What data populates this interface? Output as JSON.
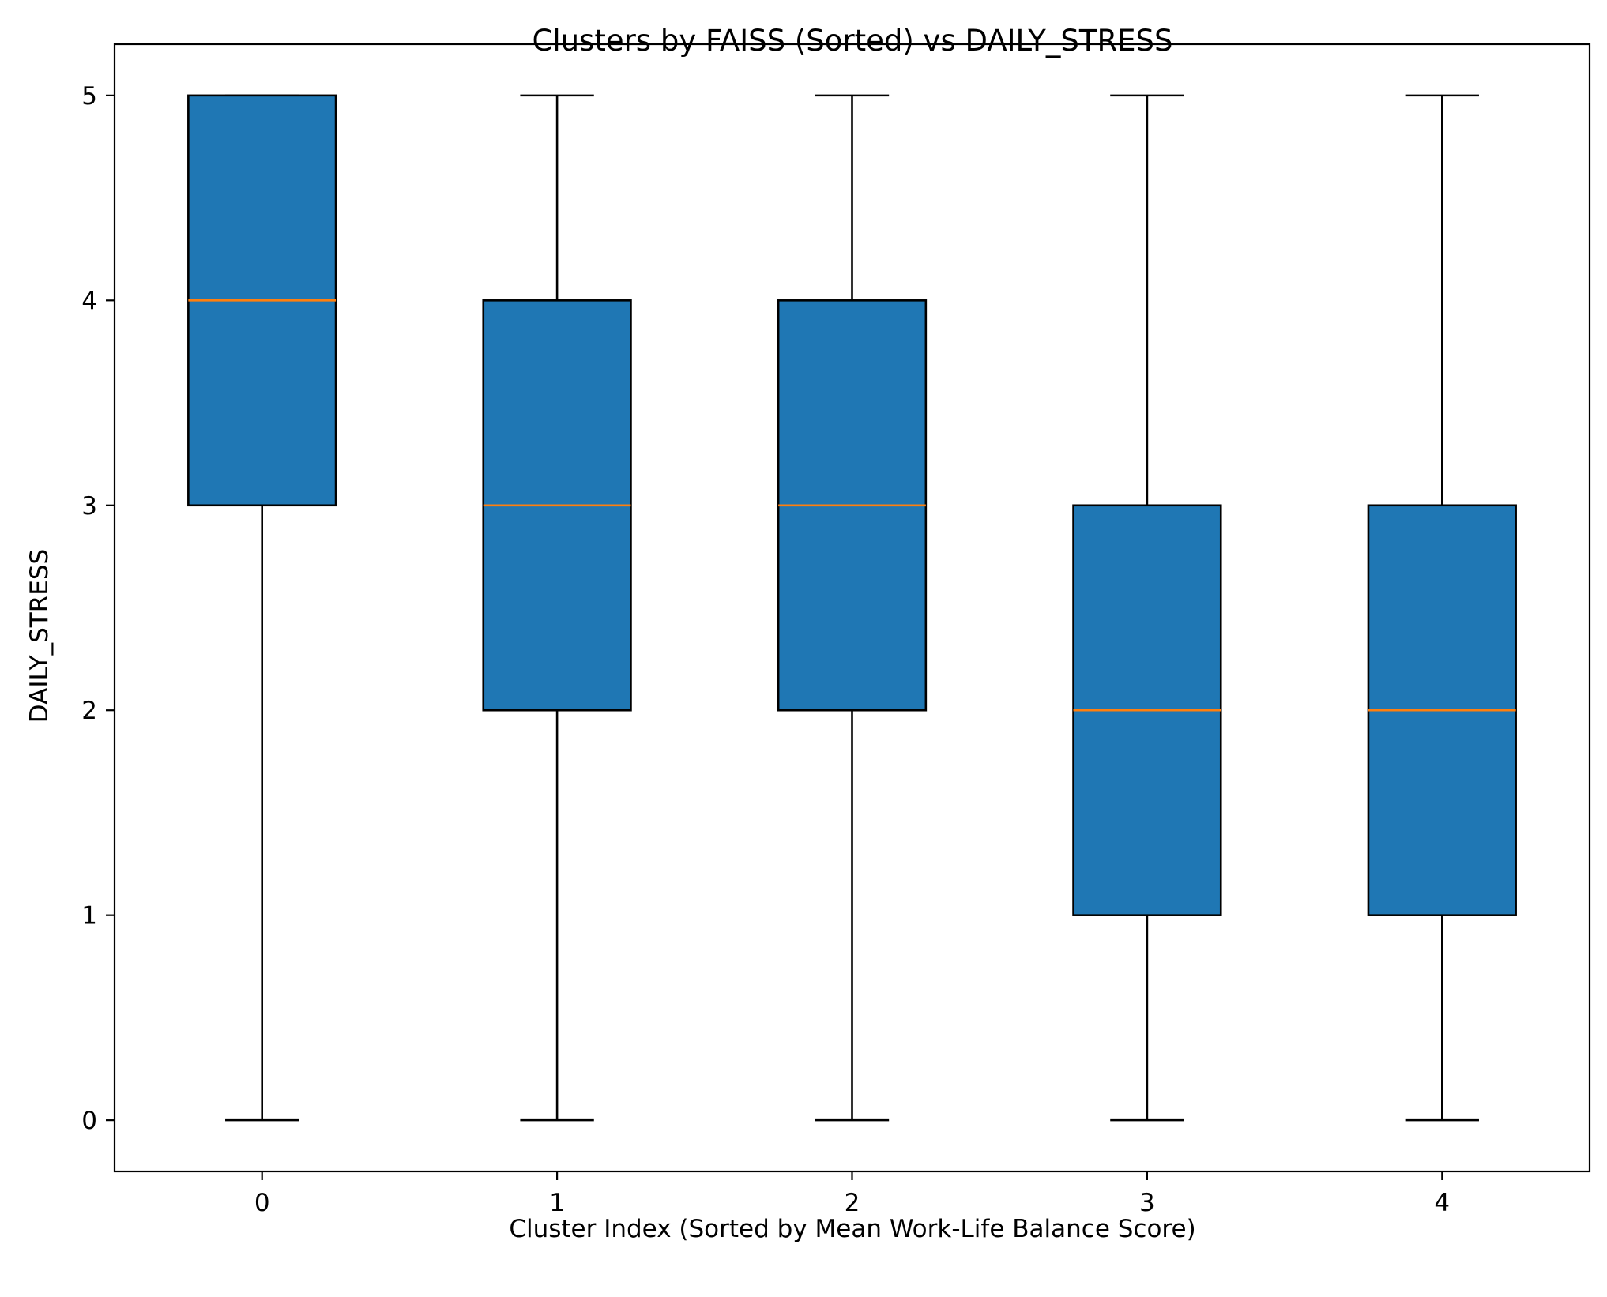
{
  "chart_data": {
    "type": "box",
    "title": "Clusters by FAISS (Sorted) vs DAILY_STRESS",
    "xlabel": "Cluster Index (Sorted by Mean Work-Life Balance Score)",
    "ylabel": "DAILY_STRESS",
    "categories": [
      "0",
      "1",
      "2",
      "3",
      "4"
    ],
    "boxes": [
      {
        "category": "0",
        "whisker_low": 0,
        "q1": 3,
        "median": 4,
        "q3": 5,
        "whisker_high": 5
      },
      {
        "category": "1",
        "whisker_low": 0,
        "q1": 2,
        "median": 3,
        "q3": 4,
        "whisker_high": 5
      },
      {
        "category": "2",
        "whisker_low": 0,
        "q1": 2,
        "median": 3,
        "q3": 4,
        "whisker_high": 5
      },
      {
        "category": "3",
        "whisker_low": 0,
        "q1": 1,
        "median": 2,
        "q3": 3,
        "whisker_high": 5
      },
      {
        "category": "4",
        "whisker_low": 0,
        "q1": 1,
        "median": 2,
        "q3": 3,
        "whisker_high": 5
      }
    ],
    "ylim": [
      -0.25,
      5.25
    ],
    "yticks": [
      0,
      1,
      2,
      3,
      4,
      5
    ],
    "grid": false,
    "colors": {
      "box_fill": "#1f77b4",
      "median": "#ff7f0e",
      "edge": "#000000"
    }
  }
}
